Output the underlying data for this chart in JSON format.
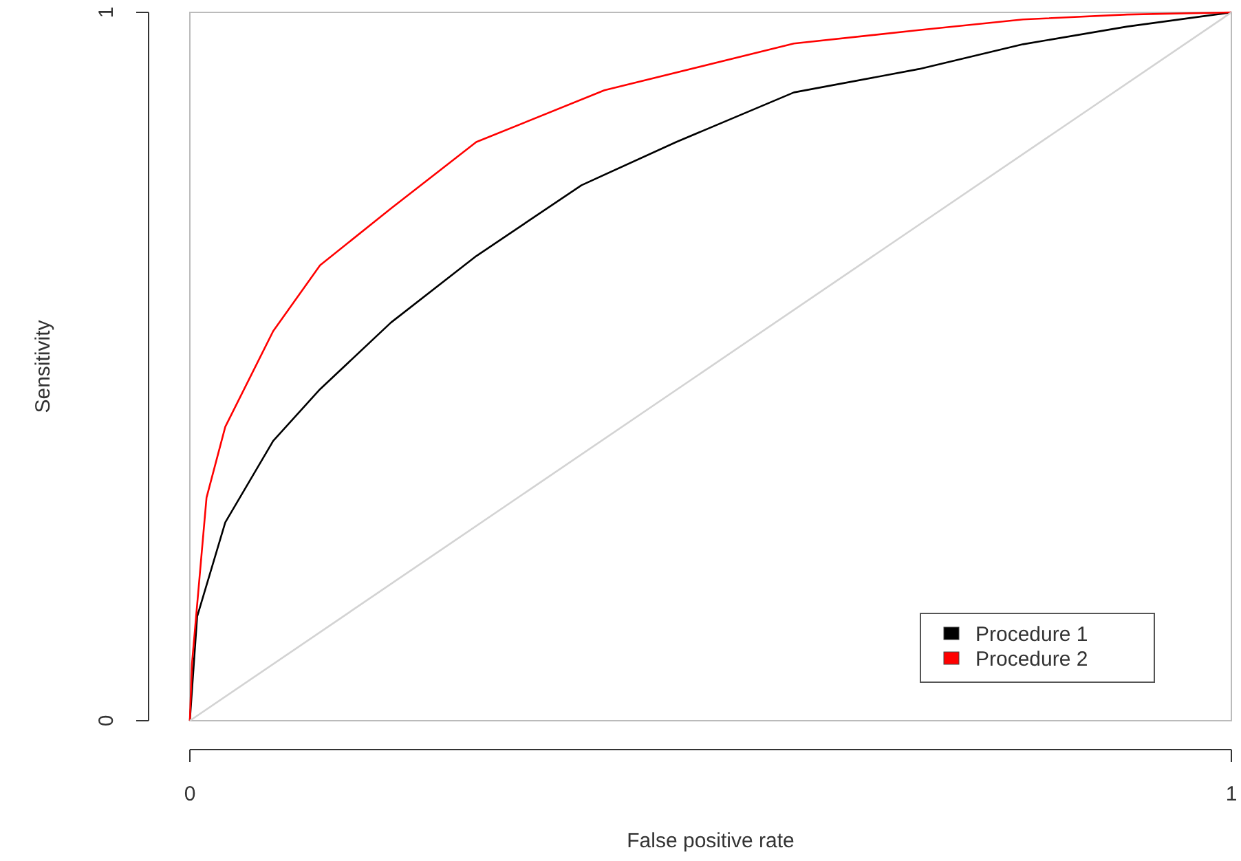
{
  "chart_data": {
    "type": "line",
    "xlabel": "False positive rate",
    "ylabel": "Sensitivity",
    "xlim": [
      0,
      1
    ],
    "ylim": [
      0,
      1
    ],
    "xticks": [
      0,
      1
    ],
    "yticks": [
      0,
      1
    ],
    "legend": "bottom right",
    "marker": "none",
    "line_style": "solid",
    "series": [
      {
        "name": "Procedure 1",
        "color": "#000000",
        "x": [
          0,
          0.007,
          0.034,
          0.08,
          0.125,
          0.193,
          0.275,
          0.376,
          0.467,
          0.58,
          0.7,
          0.8,
          0.9,
          1
        ],
        "values": [
          0,
          0.147,
          0.28,
          0.395,
          0.468,
          0.562,
          0.656,
          0.756,
          0.817,
          0.887,
          0.92,
          0.955,
          0.98,
          1
        ]
      },
      {
        "name": "Procedure 2",
        "color": "#ff0000",
        "x": [
          0,
          0.002,
          0.016,
          0.034,
          0.08,
          0.125,
          0.193,
          0.275,
          0.398,
          0.58,
          0.7,
          0.8,
          0.9,
          1
        ],
        "values": [
          0,
          0.08,
          0.315,
          0.415,
          0.55,
          0.643,
          0.723,
          0.817,
          0.89,
          0.956,
          0.975,
          0.99,
          0.997,
          1
        ]
      },
      {
        "color": "#d3d3d3",
        "x": [
          0,
          1
        ],
        "values": [
          0,
          1
        ]
      }
    ]
  }
}
